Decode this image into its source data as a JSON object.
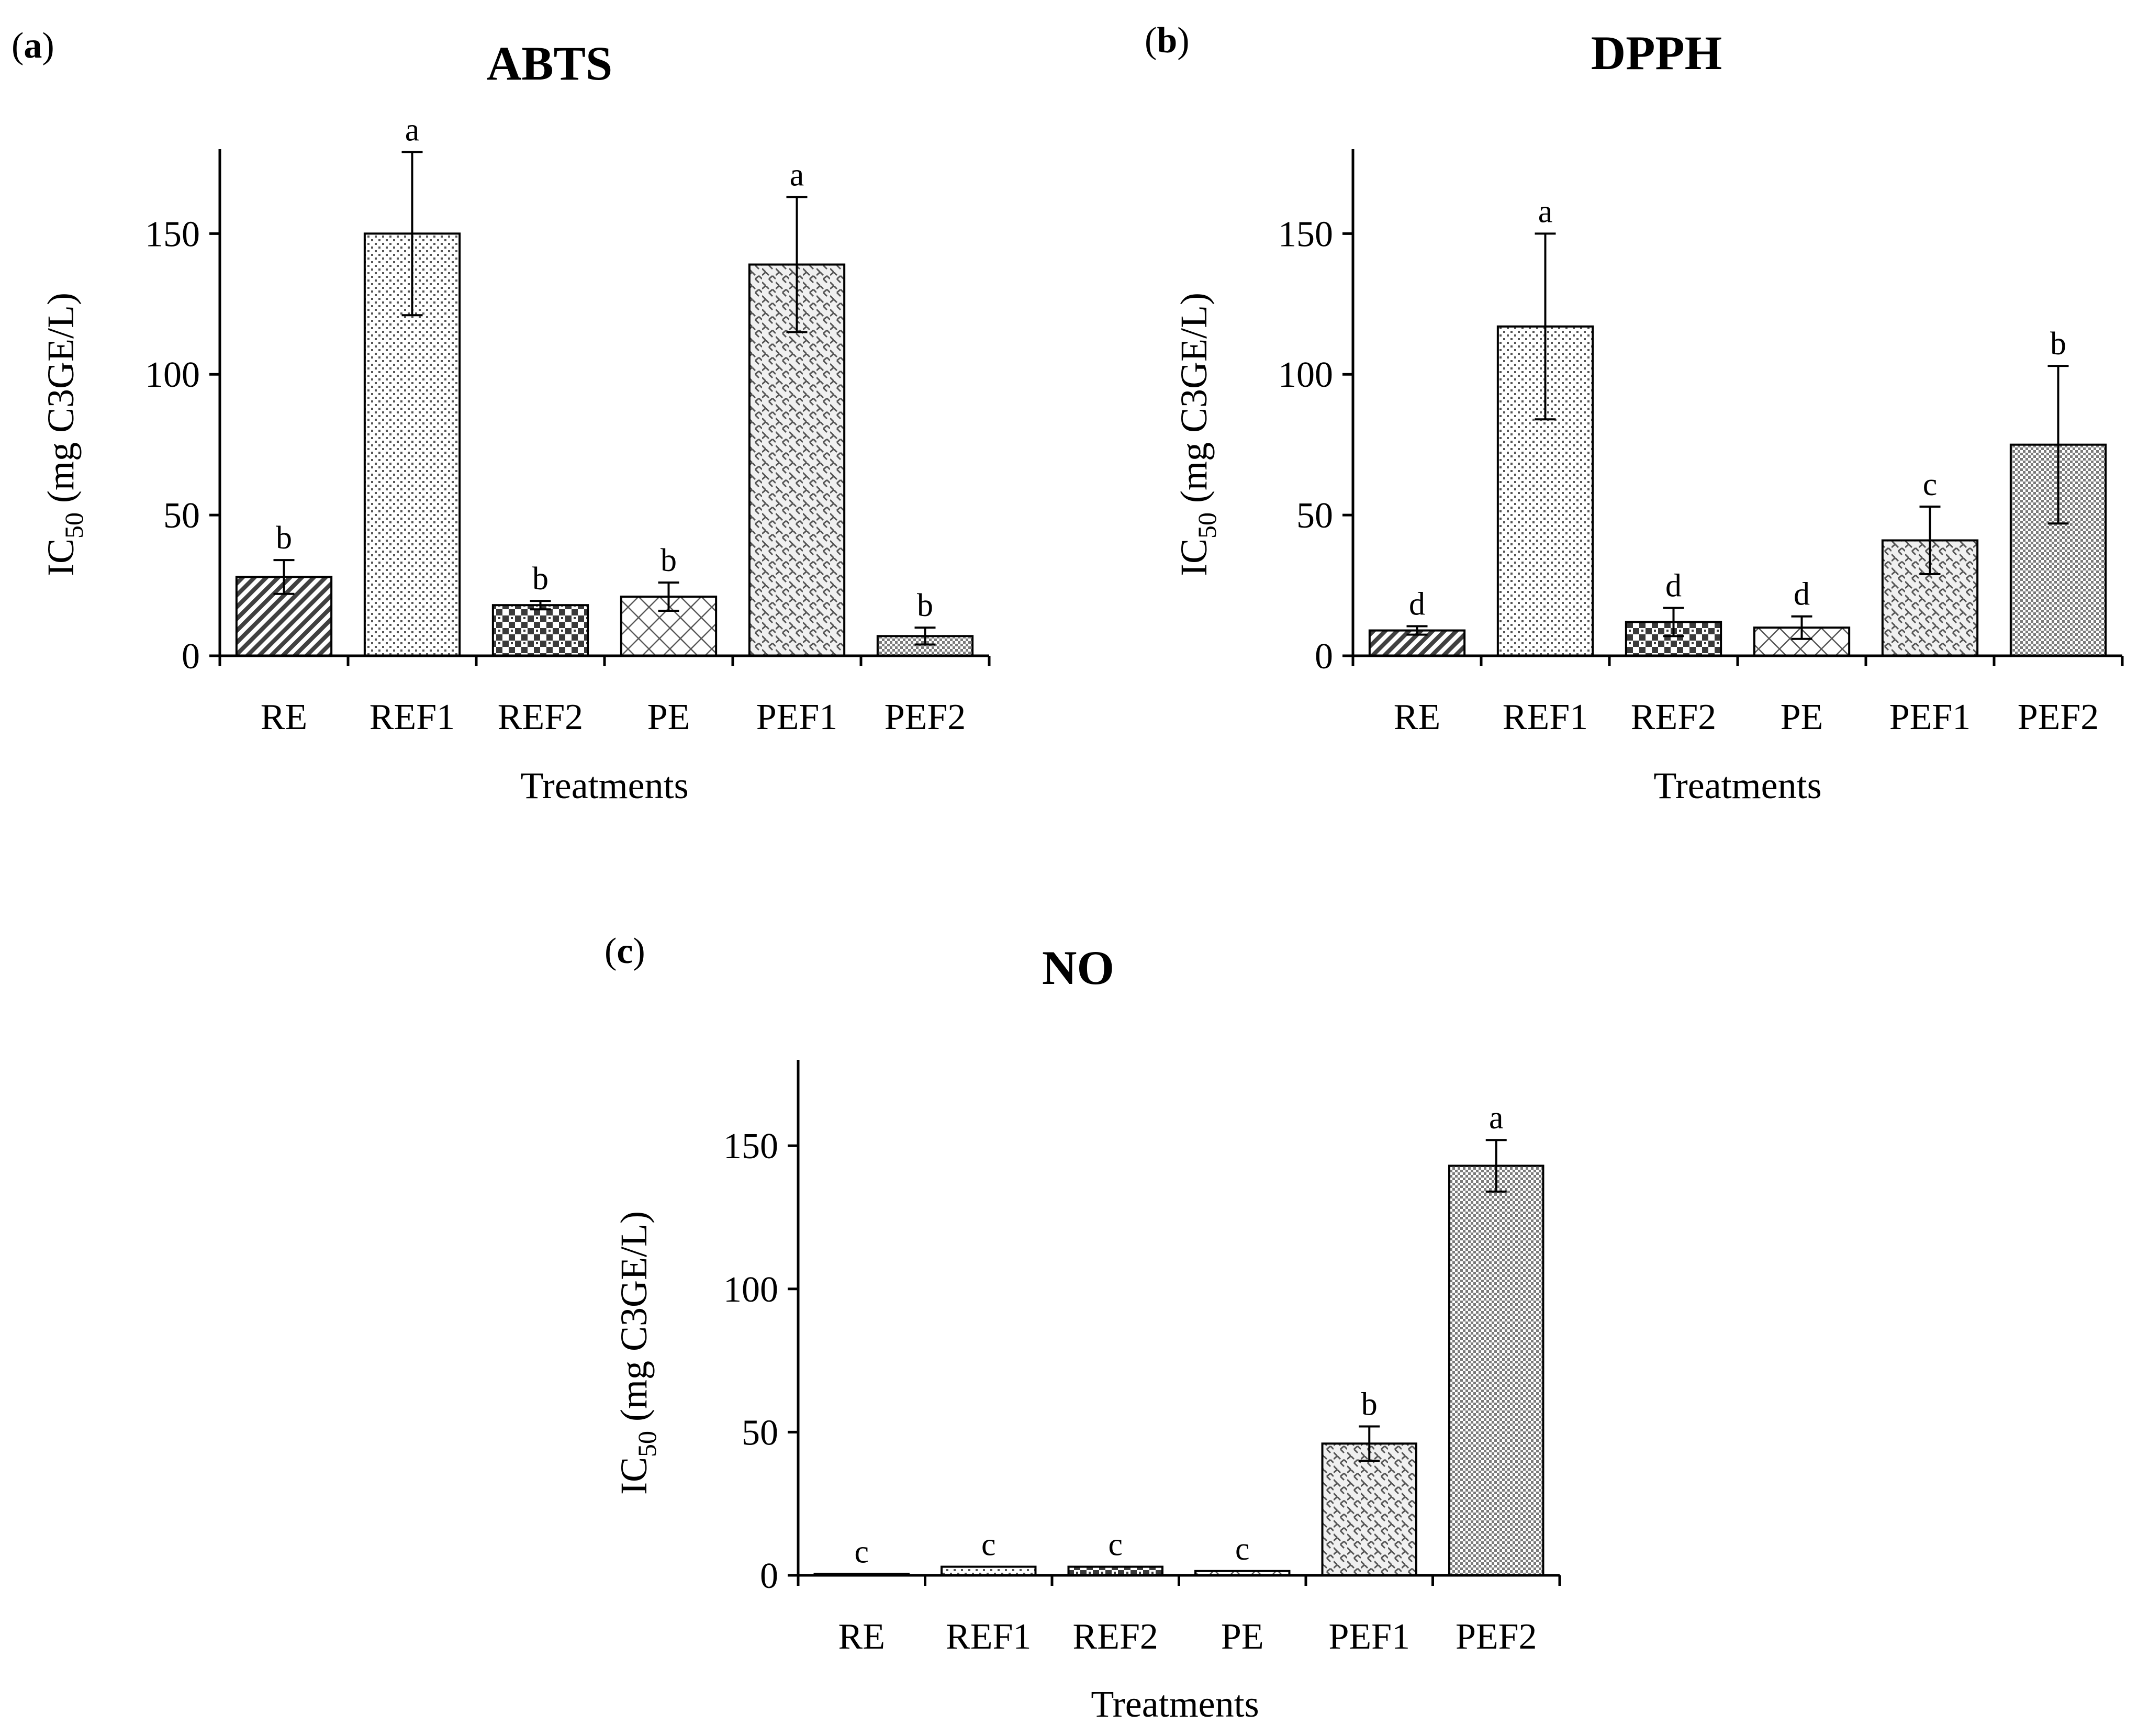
{
  "chart_data": [
    {
      "panel_label": "a",
      "type": "bar",
      "title": "ABTS",
      "ylabel": "IC",
      "ylabel_subscript": "50",
      "ylabel_rest": " (mg C3GE/L)",
      "xlabel": "Treatments",
      "ylim": [
        0,
        180
      ],
      "yticks": [
        0,
        50,
        100,
        150
      ],
      "categories": [
        "RE",
        "REF1",
        "REF2",
        "PE",
        "PEF1",
        "PEF2"
      ],
      "values": [
        28,
        150,
        18,
        21,
        139,
        7
      ],
      "errors": [
        6,
        29,
        1.5,
        5,
        24,
        3
      ],
      "significance": [
        "b",
        "a",
        "b",
        "b",
        "a",
        "b"
      ],
      "patterns": [
        "diag",
        "dots",
        "checker",
        "diamond",
        "weave",
        "dense"
      ]
    },
    {
      "panel_label": "b",
      "type": "bar",
      "title": "DPPH",
      "ylabel": "IC",
      "ylabel_subscript": "50",
      "ylabel_rest": " (mg C3GE/L)",
      "xlabel": "Treatments",
      "ylim": [
        0,
        180
      ],
      "yticks": [
        0,
        50,
        100,
        150
      ],
      "categories": [
        "RE",
        "REF1",
        "REF2",
        "PE",
        "PEF1",
        "PEF2"
      ],
      "values": [
        9,
        117,
        12,
        10,
        41,
        75
      ],
      "errors": [
        1.5,
        33,
        5,
        4,
        12,
        28
      ],
      "significance": [
        "d",
        "a",
        "d",
        "d",
        "c",
        "b"
      ],
      "patterns": [
        "diag",
        "dots",
        "checker",
        "diamond",
        "weave",
        "dense"
      ]
    },
    {
      "panel_label": "c",
      "type": "bar",
      "title": "NO",
      "ylabel": "IC",
      "ylabel_subscript": "50",
      "ylabel_rest": " (mg C3GE/L)",
      "xlabel": "Treatments",
      "ylim": [
        0,
        180
      ],
      "yticks": [
        0,
        50,
        100,
        150
      ],
      "categories": [
        "RE",
        "REF1",
        "REF2",
        "PE",
        "PEF1",
        "PEF2"
      ],
      "values": [
        0.5,
        3,
        3,
        1.5,
        46,
        143
      ],
      "errors": [
        0,
        0,
        0,
        0,
        6,
        9
      ],
      "significance": [
        "c",
        "c",
        "c",
        "c",
        "b",
        "a"
      ],
      "patterns": [
        "diag",
        "dots",
        "checker",
        "diamond",
        "weave",
        "dense"
      ]
    }
  ]
}
